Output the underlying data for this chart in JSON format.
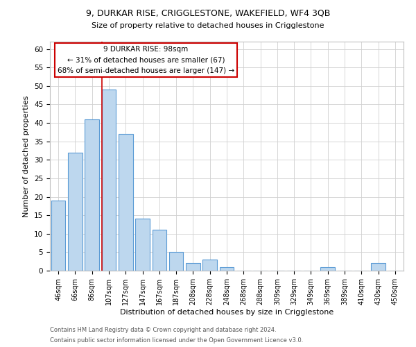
{
  "title": "9, DURKAR RISE, CRIGGLESTONE, WAKEFIELD, WF4 3QB",
  "subtitle": "Size of property relative to detached houses in Crigglestone",
  "xlabel": "Distribution of detached houses by size in Crigglestone",
  "ylabel": "Number of detached properties",
  "bar_labels": [
    "46sqm",
    "66sqm",
    "86sqm",
    "107sqm",
    "127sqm",
    "147sqm",
    "167sqm",
    "187sqm",
    "208sqm",
    "228sqm",
    "248sqm",
    "268sqm",
    "288sqm",
    "309sqm",
    "329sqm",
    "349sqm",
    "369sqm",
    "389sqm",
    "410sqm",
    "430sqm",
    "450sqm"
  ],
  "bar_values": [
    19,
    32,
    41,
    49,
    37,
    14,
    11,
    5,
    2,
    3,
    1,
    0,
    0,
    0,
    0,
    0,
    1,
    0,
    0,
    2,
    0
  ],
  "bar_color": "#bdd7ee",
  "bar_edge_color": "#5b9bd5",
  "background_color": "#ffffff",
  "grid_color": "#d0d0d0",
  "ylim": [
    0,
    62
  ],
  "yticks": [
    0,
    5,
    10,
    15,
    20,
    25,
    30,
    35,
    40,
    45,
    50,
    55,
    60
  ],
  "vline_color": "#cc0000",
  "annotation_title": "9 DURKAR RISE: 98sqm",
  "annotation_line1": "← 31% of detached houses are smaller (67)",
  "annotation_line2": "68% of semi-detached houses are larger (147) →",
  "annotation_box_color": "#ffffff",
  "annotation_box_edge": "#cc0000",
  "footer1": "Contains HM Land Registry data © Crown copyright and database right 2024.",
  "footer2": "Contains public sector information licensed under the Open Government Licence v3.0."
}
